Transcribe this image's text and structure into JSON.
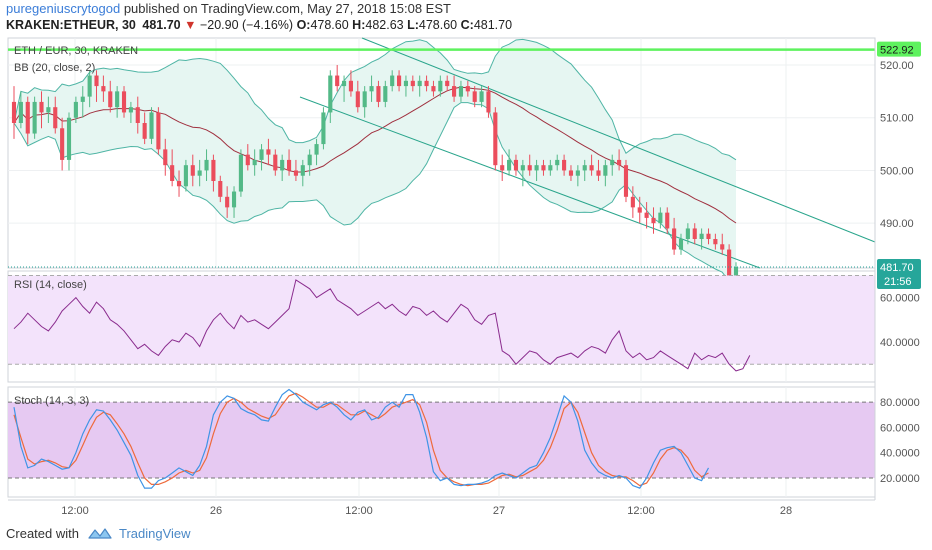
{
  "header": {
    "author": "puregeniuscrytogod",
    "published": "published on TradingView.com, May 27, 2018 15:08 EST",
    "symbol": "KRAKEN:ETHEUR, 30",
    "last": "481.70",
    "arrow": "▼",
    "change": "−20.90 (−4.16%)",
    "o_label": "O:",
    "o": "478.60",
    "h_label": "H:",
    "h": "482.63",
    "l_label": "L:",
    "l": "478.60",
    "c_label": "C:",
    "c": "481.70"
  },
  "footer": {
    "created": "Created with",
    "brand": "TradingView",
    "logo_icon": "tradingview-logo-icon"
  },
  "colors": {
    "up": "#53b987",
    "down": "#eb4d5c",
    "bb_fill": "#e6f6f2",
    "bb_band": "#4fb5a5",
    "bb_mid": "#a0303f",
    "channel": "#2aa58c",
    "level": "#5ef25e",
    "rsi_fill": "#f3e3fb",
    "rsi_line": "#8a2c8e",
    "stoch_fill": "#e6c9f2",
    "stoch_k": "#3f94e6",
    "stoch_d": "#ee6a3c",
    "price_tag": "#26a69a"
  },
  "chart_data": [
    {
      "type": "candlestick",
      "title": "ETH / EUR, 30, KRAKEN",
      "indicator_label": "BB (20, close, 2)",
      "ylim": [
        481.5,
        522.92
      ],
      "y_ticks": [
        "520.00",
        "510.00",
        "500.00",
        "490.00"
      ],
      "y_tick_values": [
        520,
        510,
        500,
        490
      ],
      "x_labels": [
        "12:00",
        "26",
        "12:00",
        "27",
        "12:00",
        "28"
      ],
      "horizontal_level": {
        "value": 522.92,
        "label": "522.92"
      },
      "last_price_label": "481.70",
      "countdown_label": "21:56",
      "ohlc": [
        [
          513,
          516,
          506,
          509
        ],
        [
          509,
          515,
          508,
          513
        ],
        [
          513,
          514,
          505,
          507
        ],
        [
          507,
          514,
          506,
          513
        ],
        [
          513,
          515,
          508,
          511
        ],
        [
          511,
          514,
          509,
          512
        ],
        [
          512,
          514,
          507,
          508
        ],
        [
          508,
          510,
          500,
          502
        ],
        [
          502,
          511,
          500,
          510
        ],
        [
          510,
          514,
          509,
          513
        ],
        [
          513,
          516,
          510,
          514
        ],
        [
          514,
          519,
          512,
          518
        ],
        [
          518,
          519,
          513,
          516
        ],
        [
          516,
          518,
          513,
          515
        ],
        [
          515,
          517,
          511,
          512
        ],
        [
          512,
          516,
          510,
          515
        ],
        [
          515,
          516,
          510,
          511
        ],
        [
          511,
          513,
          509,
          512
        ],
        [
          512,
          514,
          507,
          509
        ],
        [
          509,
          511,
          505,
          506
        ],
        [
          506,
          512,
          505,
          511
        ],
        [
          511,
          512,
          503,
          504
        ],
        [
          504,
          506,
          499,
          501
        ],
        [
          501,
          504,
          497,
          498
        ],
        [
          498,
          500,
          495,
          497
        ],
        [
          497,
          502,
          496,
          501
        ],
        [
          501,
          503,
          497,
          499
        ],
        [
          499,
          502,
          497,
          500
        ],
        [
          500,
          504,
          498,
          502
        ],
        [
          502,
          503,
          496,
          498
        ],
        [
          498,
          499,
          494,
          495
        ],
        [
          495,
          497,
          491,
          493
        ],
        [
          493,
          497,
          491,
          496
        ],
        [
          496,
          504,
          495,
          503
        ],
        [
          503,
          505,
          500,
          501
        ],
        [
          501,
          504,
          499,
          502
        ],
        [
          502,
          505,
          500,
          504
        ],
        [
          504,
          506,
          501,
          503
        ],
        [
          503,
          504,
          499,
          500
        ],
        [
          500,
          503,
          498,
          502
        ],
        [
          502,
          504,
          499,
          500
        ],
        [
          500,
          502,
          498,
          499
        ],
        [
          499,
          502,
          497,
          501
        ],
        [
          501,
          504,
          499,
          503
        ],
        [
          503,
          506,
          501,
          505
        ],
        [
          505,
          512,
          504,
          511
        ],
        [
          511,
          519,
          509,
          518
        ],
        [
          518,
          520,
          515,
          516
        ],
        [
          516,
          518,
          513,
          517
        ],
        [
          517,
          519,
          514,
          515
        ],
        [
          515,
          517,
          511,
          512
        ],
        [
          512,
          516,
          510,
          515
        ],
        [
          515,
          518,
          513,
          516
        ],
        [
          516,
          517,
          512,
          513
        ],
        [
          513,
          517,
          512,
          516
        ],
        [
          516,
          519,
          515,
          518
        ],
        [
          518,
          519,
          515,
          516
        ],
        [
          516,
          518,
          514,
          517
        ],
        [
          517,
          518,
          515,
          516
        ],
        [
          516,
          518,
          514,
          517
        ],
        [
          517,
          518,
          515,
          516
        ],
        [
          516,
          517,
          514,
          515
        ],
        [
          515,
          518,
          514,
          517
        ],
        [
          517,
          518,
          515,
          516
        ],
        [
          516,
          518,
          513,
          514
        ],
        [
          514,
          517,
          513,
          516
        ],
        [
          516,
          517,
          514,
          515
        ],
        [
          515,
          516,
          512,
          513
        ],
        [
          513,
          516,
          512,
          515
        ],
        [
          515,
          516,
          510,
          511
        ],
        [
          511,
          512,
          500,
          501
        ],
        [
          501,
          503,
          498,
          500
        ],
        [
          500,
          504,
          499,
          502
        ],
        [
          502,
          503,
          499,
          500
        ],
        [
          500,
          502,
          497,
          501
        ],
        [
          501,
          503,
          499,
          500
        ],
        [
          500,
          502,
          498,
          501
        ],
        [
          501,
          502,
          499,
          500
        ],
        [
          500,
          502,
          499,
          501
        ],
        [
          501,
          503,
          500,
          502
        ],
        [
          502,
          503,
          499,
          500
        ],
        [
          500,
          501,
          498,
          499
        ],
        [
          499,
          501,
          497,
          500
        ],
        [
          500,
          502,
          498,
          501
        ],
        [
          501,
          503,
          499,
          500
        ],
        [
          500,
          502,
          498,
          499
        ],
        [
          499,
          502,
          497,
          501
        ],
        [
          501,
          503,
          499,
          502
        ],
        [
          502,
          504,
          500,
          501
        ],
        [
          501,
          502,
          494,
          495
        ],
        [
          495,
          497,
          491,
          493
        ],
        [
          493,
          495,
          490,
          492
        ],
        [
          492,
          494,
          489,
          491
        ],
        [
          491,
          493,
          488,
          490
        ],
        [
          490,
          493,
          489,
          492
        ],
        [
          492,
          493,
          488,
          489
        ],
        [
          489,
          491,
          484,
          485
        ],
        [
          485,
          488,
          484,
          487
        ],
        [
          487,
          490,
          486,
          489
        ],
        [
          489,
          490,
          486,
          487
        ],
        [
          487,
          489,
          485,
          488
        ],
        [
          488,
          489,
          486,
          487
        ],
        [
          487,
          488,
          485,
          486
        ],
        [
          486,
          488,
          484,
          485
        ],
        [
          485,
          486,
          478.6,
          479
        ],
        [
          478.6,
          482.6,
          478.6,
          481.7
        ]
      ]
    },
    {
      "type": "line",
      "title": "RSI (14, close)",
      "ylim": [
        22,
        72
      ],
      "y_ticks": [
        "60.0000",
        "40.0000"
      ],
      "y_tick_values": [
        60,
        40
      ],
      "band": [
        70,
        30
      ],
      "values": [
        46,
        49,
        53,
        50,
        47,
        45,
        49,
        54,
        57,
        60,
        56,
        53,
        58,
        55,
        50,
        48,
        45,
        41,
        37,
        39,
        36,
        34,
        38,
        41,
        40,
        44,
        42,
        38,
        45,
        50,
        53,
        49,
        46,
        52,
        49,
        50,
        48,
        46,
        49,
        52,
        55,
        68,
        66,
        64,
        60,
        62,
        64,
        59,
        57,
        55,
        52,
        54,
        56,
        58,
        55,
        57,
        54,
        52,
        56,
        55,
        52,
        54,
        51,
        49,
        53,
        57,
        55,
        50,
        48,
        52,
        53,
        36,
        34,
        30,
        33,
        36,
        35,
        32,
        30,
        33,
        34,
        35,
        33,
        36,
        38,
        37,
        35,
        41,
        45,
        36,
        33,
        35,
        32,
        33,
        36,
        34,
        32,
        30,
        28,
        35,
        32,
        34,
        33,
        35,
        30,
        27,
        28,
        34
      ]
    },
    {
      "type": "line",
      "title": "Stoch (14, 3, 3)",
      "ylim": [
        5,
        92
      ],
      "y_ticks": [
        "80.0000",
        "60.0000",
        "40.0000",
        "20.0000"
      ],
      "y_tick_values": [
        80,
        60,
        40,
        20
      ],
      "band": [
        80,
        20
      ],
      "series": [
        {
          "values": [
            76,
            45,
            28,
            30,
            35,
            33,
            30,
            27,
            28,
            40,
            55,
            66,
            74,
            73,
            66,
            58,
            48,
            38,
            22,
            12,
            12,
            18,
            20,
            24,
            28,
            25,
            22,
            30,
            45,
            70,
            80,
            85,
            83,
            75,
            72,
            70,
            66,
            65,
            76,
            86,
            90,
            86,
            80,
            77,
            74,
            78,
            80,
            76,
            70,
            66,
            72,
            74,
            66,
            68,
            76,
            80,
            76,
            86,
            86,
            72,
            52,
            25,
            18,
            20,
            15,
            14,
            15,
            15,
            16,
            18,
            22,
            24,
            22,
            20,
            24,
            28,
            30,
            40,
            52,
            68,
            85,
            80,
            65,
            42,
            32,
            25,
            22,
            20,
            22,
            20,
            14,
            12,
            20,
            32,
            42,
            44,
            45,
            40,
            30,
            20,
            18,
            28
          ]
        },
        {
          "values": [
            70,
            52,
            35,
            31,
            33,
            34,
            32,
            29,
            28,
            34,
            46,
            58,
            68,
            72,
            70,
            63,
            55,
            45,
            32,
            20,
            15,
            15,
            17,
            20,
            24,
            26,
            24,
            26,
            36,
            55,
            71,
            80,
            83,
            80,
            75,
            72,
            69,
            67,
            70,
            78,
            85,
            87,
            84,
            80,
            76,
            76,
            79,
            78,
            74,
            70,
            70,
            73,
            70,
            67,
            71,
            76,
            78,
            80,
            82,
            78,
            64,
            42,
            26,
            20,
            17,
            15,
            14,
            15,
            15,
            16,
            19,
            22,
            23,
            21,
            22,
            25,
            28,
            34,
            44,
            58,
            75,
            80,
            72,
            56,
            40,
            30,
            25,
            22,
            21,
            21,
            18,
            14,
            16,
            24,
            35,
            42,
            44,
            42,
            36,
            26,
            21,
            24
          ]
        }
      ]
    }
  ]
}
